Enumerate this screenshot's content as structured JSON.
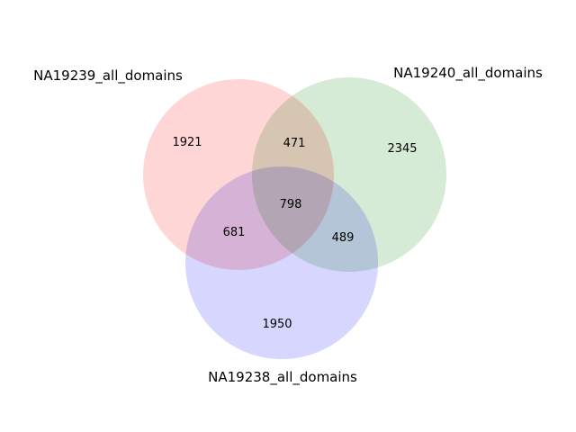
{
  "chart_data": {
    "type": "venn3",
    "sets": [
      {
        "id": "A",
        "label": "NA19239_all_domains",
        "color": "#ff9999"
      },
      {
        "id": "B",
        "label": "NA19240_all_domains",
        "color": "#99cc99"
      },
      {
        "id": "C",
        "label": "NA19238_all_domains",
        "color": "#9999ff"
      }
    ],
    "regions": [
      {
        "sets": [
          "A"
        ],
        "value": 1921
      },
      {
        "sets": [
          "B"
        ],
        "value": 2345
      },
      {
        "sets": [
          "C"
        ],
        "value": 1950
      },
      {
        "sets": [
          "A",
          "B"
        ],
        "value": 471
      },
      {
        "sets": [
          "A",
          "C"
        ],
        "value": 681
      },
      {
        "sets": [
          "B",
          "C"
        ],
        "value": 489
      },
      {
        "sets": [
          "A",
          "B",
          "C"
        ],
        "value": 798
      }
    ],
    "labels": {
      "only_a": "1921",
      "only_b": "2345",
      "only_c": "1950",
      "a_b": "471",
      "a_c": "681",
      "b_c": "489",
      "a_b_c": "798"
    }
  }
}
